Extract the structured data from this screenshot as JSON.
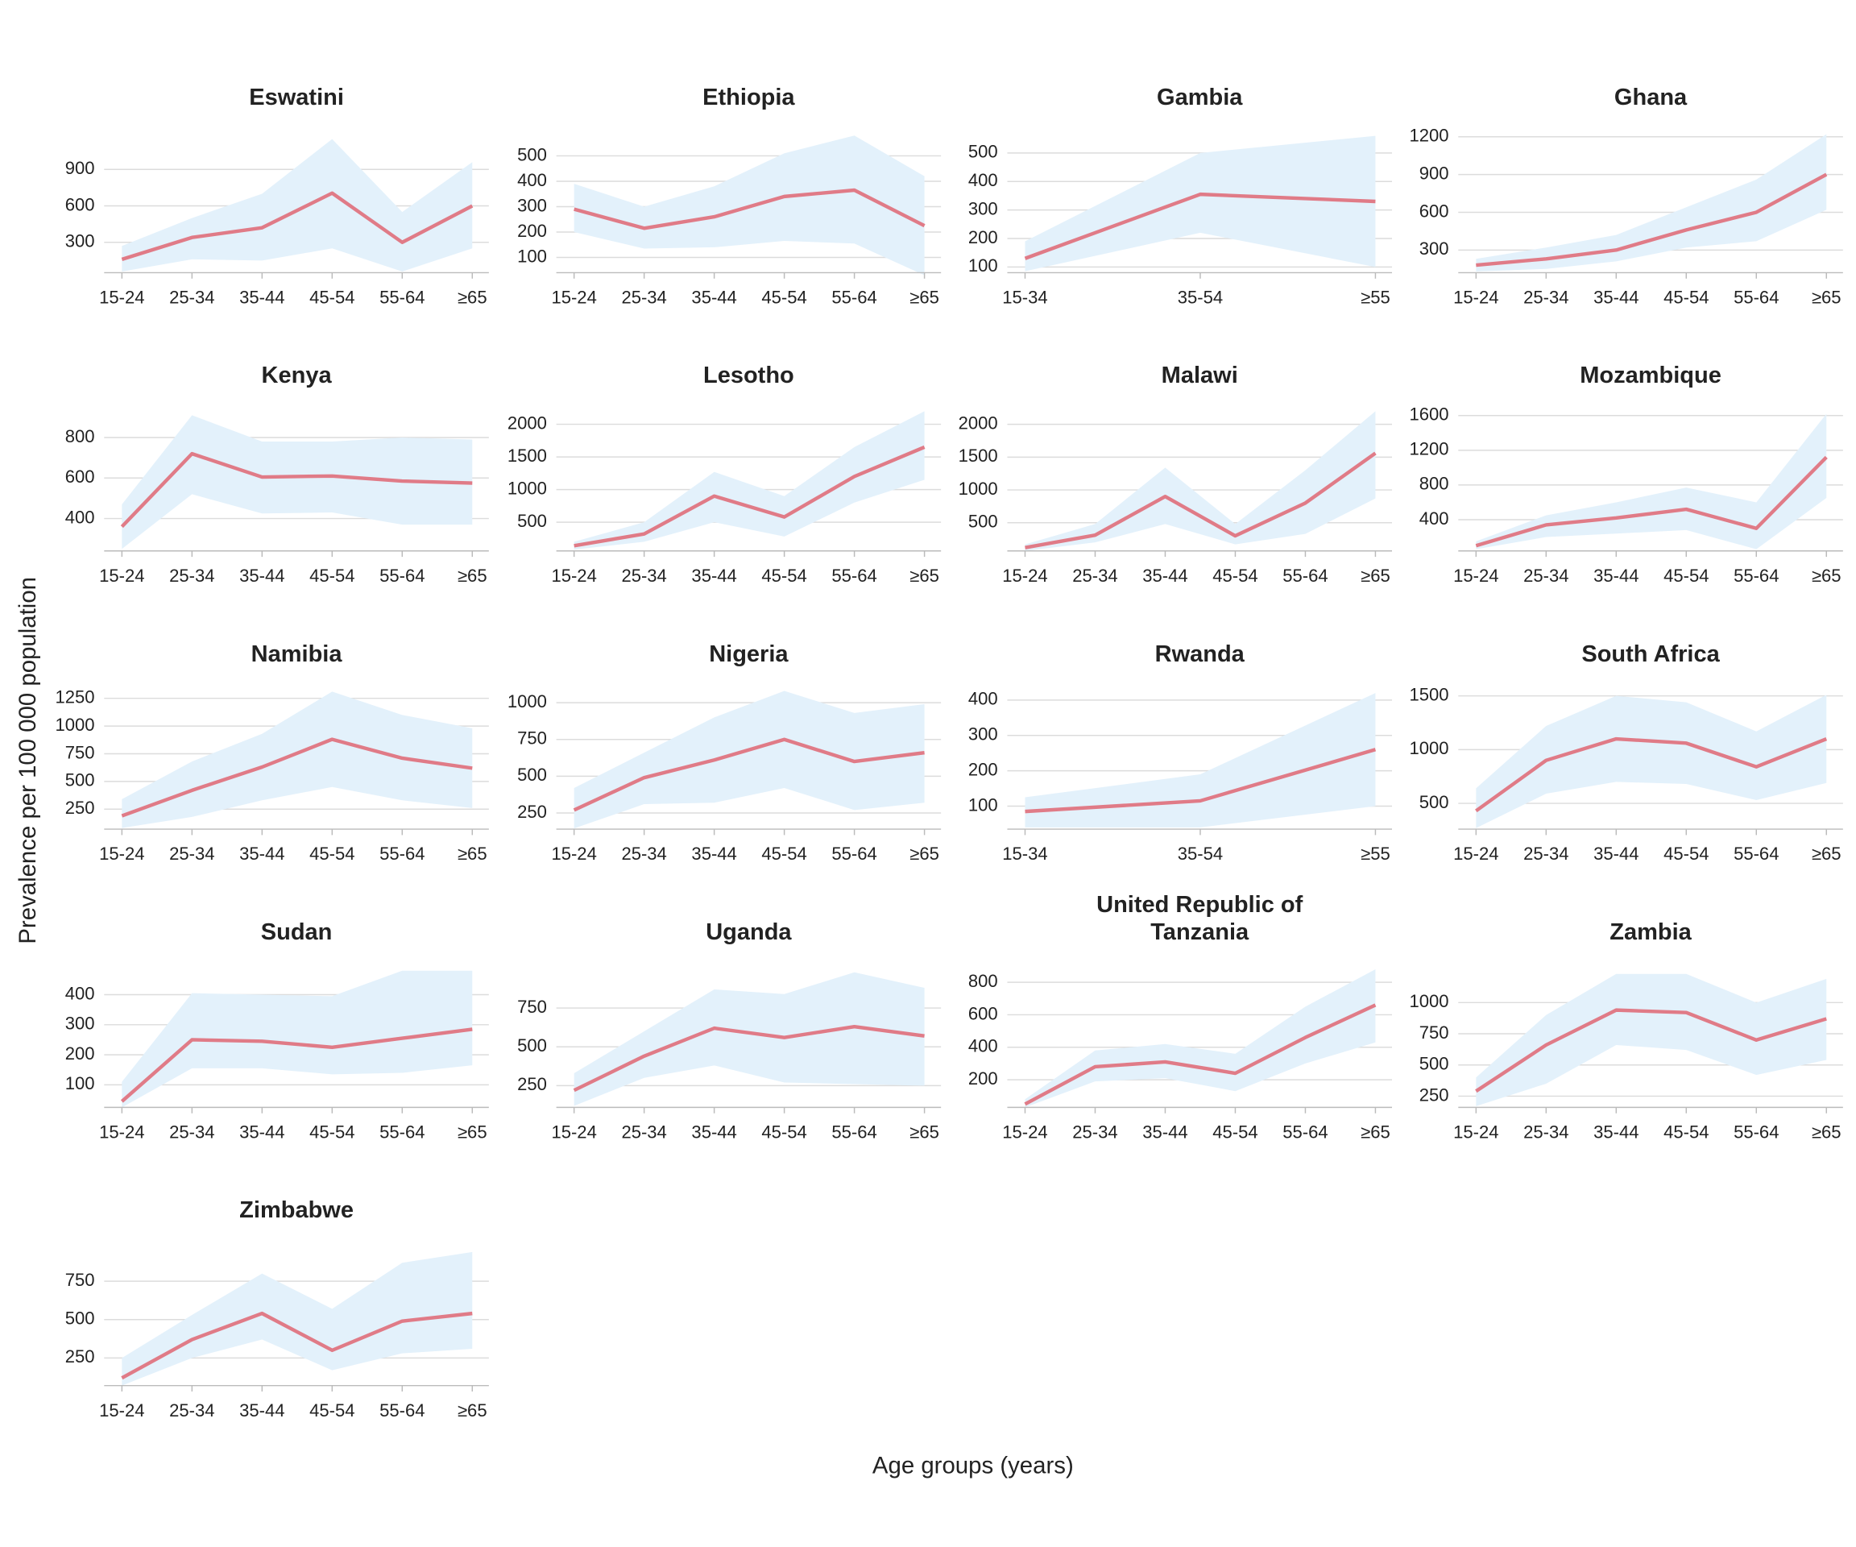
{
  "ylabel": "Prevalence per 100 000 population",
  "xlabel": "Age groups (years)",
  "chart_data": [
    {
      "type": "line",
      "title": "Eswatini",
      "categories": [
        "15-24",
        "25-34",
        "35-44",
        "45-54",
        "55-64",
        "≥65"
      ],
      "values": [
        160,
        340,
        420,
        705,
        300,
        600
      ],
      "lower": [
        60,
        160,
        150,
        250,
        60,
        250
      ],
      "upper": [
        270,
        500,
        700,
        1150,
        550,
        960
      ],
      "color": "#e07b87",
      "band_color": "#e3f1fb",
      "ylim": [
        50,
        1200
      ],
      "yticks": [
        300,
        600,
        900
      ],
      "grid": true
    },
    {
      "type": "line",
      "title": "Ethiopia",
      "categories": [
        "15-24",
        "25-34",
        "35-44",
        "45-54",
        "55-64",
        "≥65"
      ],
      "values": [
        290,
        215,
        260,
        340,
        365,
        225
      ],
      "lower": [
        200,
        135,
        140,
        165,
        155,
        30
      ],
      "upper": [
        390,
        300,
        380,
        510,
        580,
        420
      ],
      "color": "#e07b87",
      "band_color": "#e3f1fb",
      "ylim": [
        40,
        590
      ],
      "yticks": [
        100,
        200,
        300,
        400,
        500
      ],
      "grid": true
    },
    {
      "type": "line",
      "title": "Gambia",
      "categories": [
        "15-34",
        "35-54",
        "≥55"
      ],
      "values": [
        130,
        355,
        330
      ],
      "lower": [
        85,
        220,
        100
      ],
      "upper": [
        190,
        500,
        560
      ],
      "color": "#e07b87",
      "band_color": "#e3f1fb",
      "ylim": [
        80,
        570
      ],
      "yticks": [
        100,
        200,
        300,
        400,
        500
      ],
      "grid": true
    },
    {
      "type": "line",
      "title": "Ghana",
      "categories": [
        "15-24",
        "25-34",
        "35-44",
        "45-54",
        "55-64",
        "≥65"
      ],
      "values": [
        180,
        230,
        300,
        460,
        600,
        900
      ],
      "lower": [
        130,
        150,
        210,
        320,
        370,
        620
      ],
      "upper": [
        230,
        320,
        420,
        640,
        860,
        1220
      ],
      "color": "#e07b87",
      "band_color": "#e3f1fb",
      "ylim": [
        120,
        1230
      ],
      "yticks": [
        300,
        600,
        900,
        1200
      ],
      "grid": true
    },
    {
      "type": "line",
      "title": "Kenya",
      "categories": [
        "15-24",
        "25-34",
        "35-44",
        "45-54",
        "55-64",
        "≥65"
      ],
      "values": [
        360,
        720,
        605,
        610,
        585,
        575
      ],
      "lower": [
        250,
        520,
        425,
        430,
        370,
        370
      ],
      "upper": [
        470,
        910,
        780,
        780,
        800,
        790
      ],
      "color": "#e07b87",
      "band_color": "#e3f1fb",
      "ylim": [
        240,
        930
      ],
      "yticks": [
        400,
        600,
        800
      ],
      "grid": true
    },
    {
      "type": "line",
      "title": "Lesotho",
      "categories": [
        "15-24",
        "25-34",
        "35-44",
        "45-54",
        "55-64",
        "≥65"
      ],
      "values": [
        140,
        320,
        900,
        580,
        1200,
        1650
      ],
      "lower": [
        80,
        200,
        500,
        280,
        800,
        1150
      ],
      "upper": [
        200,
        500,
        1270,
        900,
        1650,
        2200
      ],
      "color": "#e07b87",
      "band_color": "#e3f1fb",
      "ylim": [
        60,
        2200
      ],
      "yticks": [
        500,
        1000,
        1500,
        2000
      ],
      "grid": true
    },
    {
      "type": "line",
      "title": "Malawi",
      "categories": [
        "15-24",
        "25-34",
        "35-44",
        "45-54",
        "55-64",
        "≥65"
      ],
      "values": [
        120,
        310,
        900,
        300,
        800,
        1560
      ],
      "lower": [
        70,
        200,
        480,
        170,
        330,
        870
      ],
      "upper": [
        170,
        480,
        1340,
        480,
        1300,
        2200
      ],
      "color": "#e07b87",
      "band_color": "#e3f1fb",
      "ylim": [
        70,
        2200
      ],
      "yticks": [
        500,
        1000,
        1500,
        2000
      ],
      "grid": true
    },
    {
      "type": "line",
      "title": "Mozambique",
      "categories": [
        "15-24",
        "25-34",
        "35-44",
        "45-54",
        "55-64",
        "≥65"
      ],
      "values": [
        100,
        340,
        420,
        520,
        300,
        1120
      ],
      "lower": [
        60,
        200,
        240,
        280,
        60,
        650
      ],
      "upper": [
        150,
        450,
        600,
        770,
        600,
        1620
      ],
      "color": "#e07b87",
      "band_color": "#e3f1fb",
      "ylim": [
        40,
        1650
      ],
      "yticks": [
        400,
        800,
        1200,
        1600
      ],
      "grid": true
    },
    {
      "type": "line",
      "title": "Namibia",
      "categories": [
        "15-24",
        "25-34",
        "35-44",
        "45-54",
        "55-64",
        "≥65"
      ],
      "values": [
        190,
        420,
        630,
        880,
        710,
        620
      ],
      "lower": [
        80,
        180,
        330,
        450,
        330,
        260
      ],
      "upper": [
        340,
        680,
        930,
        1310,
        1100,
        980
      ],
      "color": "#e07b87",
      "band_color": "#e3f1fb",
      "ylim": [
        70,
        1330
      ],
      "yticks": [
        250,
        500,
        750,
        1000,
        1250
      ],
      "grid": true
    },
    {
      "type": "line",
      "title": "Nigeria",
      "categories": [
        "15-24",
        "25-34",
        "35-44",
        "45-54",
        "55-64",
        "≥65"
      ],
      "values": [
        270,
        490,
        610,
        750,
        600,
        660
      ],
      "lower": [
        145,
        310,
        320,
        420,
        270,
        320
      ],
      "upper": [
        420,
        660,
        900,
        1080,
        930,
        990
      ],
      "color": "#e07b87",
      "band_color": "#e3f1fb",
      "ylim": [
        140,
        1090
      ],
      "yticks": [
        250,
        500,
        750,
        1000
      ],
      "grid": true
    },
    {
      "type": "line",
      "title": "Rwanda",
      "categories": [
        "15-34",
        "35-54",
        "≥55"
      ],
      "values": [
        85,
        115,
        260
      ],
      "lower": [
        40,
        40,
        100
      ],
      "upper": [
        125,
        190,
        420
      ],
      "color": "#e07b87",
      "band_color": "#e3f1fb",
      "ylim": [
        35,
        430
      ],
      "yticks": [
        100,
        200,
        300,
        400
      ],
      "grid": true
    },
    {
      "type": "line",
      "title": "South Africa",
      "categories": [
        "15-24",
        "25-34",
        "35-44",
        "45-54",
        "55-64",
        "≥65"
      ],
      "values": [
        430,
        900,
        1100,
        1060,
        840,
        1100
      ],
      "lower": [
        270,
        590,
        700,
        680,
        530,
        690
      ],
      "upper": [
        640,
        1220,
        1500,
        1440,
        1170,
        1510
      ],
      "color": "#e07b87",
      "band_color": "#e3f1fb",
      "ylim": [
        260,
        1560
      ],
      "yticks": [
        500,
        1000,
        1500
      ],
      "grid": true
    },
    {
      "type": "line",
      "title": "Sudan",
      "categories": [
        "15-24",
        "25-34",
        "35-44",
        "45-54",
        "55-64",
        "≥65"
      ],
      "values": [
        45,
        250,
        245,
        225,
        255,
        285
      ],
      "lower": [
        25,
        155,
        155,
        135,
        140,
        165
      ],
      "upper": [
        110,
        405,
        400,
        395,
        480,
        480
      ],
      "color": "#e07b87",
      "band_color": "#e3f1fb",
      "ylim": [
        25,
        490
      ],
      "yticks": [
        100,
        200,
        300,
        400
      ],
      "grid": true
    },
    {
      "type": "line",
      "title": "Uganda",
      "categories": [
        "15-24",
        "25-34",
        "35-44",
        "45-54",
        "55-64",
        "≥65"
      ],
      "values": [
        220,
        440,
        620,
        560,
        630,
        570
      ],
      "lower": [
        120,
        300,
        380,
        270,
        260,
        250
      ],
      "upper": [
        330,
        600,
        870,
        840,
        980,
        880
      ],
      "color": "#e07b87",
      "band_color": "#e3f1fb",
      "ylim": [
        110,
        1010
      ],
      "yticks": [
        250,
        500,
        750
      ],
      "grid": true
    },
    {
      "type": "line",
      "title": "United Republic of Tanzania",
      "categories": [
        "15-24",
        "25-34",
        "35-44",
        "45-54",
        "55-64",
        "≥65"
      ],
      "values": [
        50,
        280,
        310,
        240,
        460,
        660
      ],
      "lower": [
        30,
        190,
        210,
        130,
        300,
        430
      ],
      "upper": [
        80,
        380,
        420,
        360,
        650,
        880
      ],
      "color": "#e07b87",
      "band_color": "#e3f1fb",
      "ylim": [
        30,
        890
      ],
      "yticks": [
        200,
        400,
        600,
        800
      ],
      "grid": true
    },
    {
      "type": "line",
      "title": "Zambia",
      "categories": [
        "15-24",
        "25-34",
        "35-44",
        "45-54",
        "55-64",
        "≥65"
      ],
      "values": [
        290,
        660,
        940,
        920,
        700,
        870
      ],
      "lower": [
        170,
        350,
        660,
        620,
        420,
        540
      ],
      "upper": [
        400,
        900,
        1230,
        1230,
        1000,
        1190
      ],
      "color": "#e07b87",
      "band_color": "#e3f1fb",
      "ylim": [
        160,
        1280
      ],
      "yticks": [
        250,
        500,
        750,
        1000
      ],
      "grid": true
    },
    {
      "type": "line",
      "title": "Zimbabwe",
      "categories": [
        "15-24",
        "25-34",
        "35-44",
        "45-54",
        "55-64",
        "≥65"
      ],
      "values": [
        120,
        370,
        540,
        300,
        490,
        540
      ],
      "lower": [
        70,
        250,
        370,
        170,
        280,
        310
      ],
      "upper": [
        250,
        530,
        800,
        570,
        870,
        940
      ],
      "color": "#e07b87",
      "band_color": "#e3f1fb",
      "ylim": [
        70,
        980
      ],
      "yticks": [
        250,
        500,
        750
      ],
      "grid": true
    }
  ]
}
